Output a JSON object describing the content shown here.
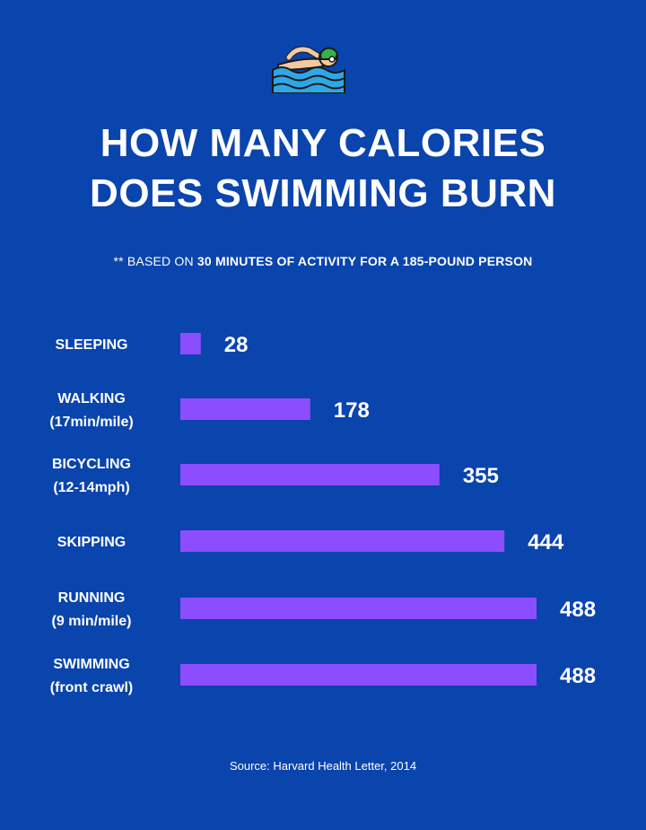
{
  "header": {
    "title_line1": "HOW MANY CALORIES",
    "title_line2": "DOES SWIMMING BURN",
    "subtitle_prefix": "** BASED ON ",
    "subtitle_bold": "30 MINUTES OF ACTIVITY FOR A 185-POUND PERSON",
    "icon": "swimmer-icon"
  },
  "chart_data": {
    "type": "bar",
    "orientation": "horizontal",
    "categories": [
      [
        "SLEEPING"
      ],
      [
        "WALKING",
        "(17min/mile)"
      ],
      [
        "BICYCLING",
        "(12-14mph)"
      ],
      [
        "SKIPPING"
      ],
      [
        "RUNNING",
        "(9 min/mile)"
      ],
      [
        "SWIMMING",
        "(front crawl)"
      ]
    ],
    "values": [
      28,
      178,
      355,
      444,
      488,
      488
    ],
    "value_labels": [
      "28",
      "178",
      "355",
      "444",
      "488",
      "488"
    ],
    "title": "HOW MANY CALORIES DOES SWIMMING BURN",
    "xlabel": "",
    "ylabel": "",
    "grid": false,
    "bar_color": "#8c4dff"
  },
  "footer": {
    "source": "Source: Harvard Health Letter, 2014"
  },
  "colors": {
    "background": "#0a44ad",
    "bar": "#8c4dff",
    "text": "#ffffff"
  }
}
